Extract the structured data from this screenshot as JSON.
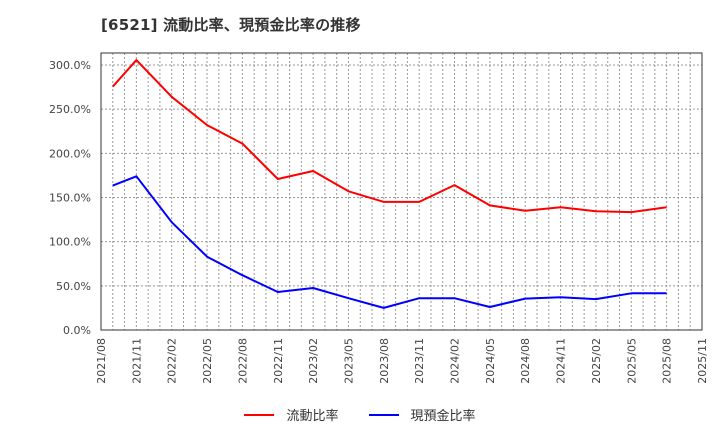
{
  "title": "[6521]  流動比率、現預金比率の推移",
  "legend": [
    {
      "label": "流動比率",
      "color": "#ff0000"
    },
    {
      "label": "現預金比率",
      "color": "#0000ff"
    }
  ],
  "chart_data": {
    "type": "line",
    "title": "[6521]  流動比率、現預金比率の推移",
    "xlabel": "",
    "ylabel": "",
    "ylim": [
      0,
      300
    ],
    "y_ticks": [
      "0.0%",
      "50.0%",
      "100.0%",
      "150.0%",
      "200.0%",
      "250.0%",
      "300.0%"
    ],
    "x_ticks": [
      "2021/08",
      "2021/11",
      "2022/02",
      "2022/05",
      "2022/08",
      "2022/11",
      "2023/02",
      "2023/05",
      "2023/08",
      "2023/11",
      "2024/02",
      "2024/05",
      "2024/08",
      "2024/11",
      "2025/02",
      "2025/05",
      "2025/08",
      "2025/11"
    ],
    "grid": true,
    "legend_position": "bottom",
    "x": [
      "2021/09",
      "2021/11",
      "2022/02",
      "2022/05",
      "2022/08",
      "2022/11",
      "2023/02",
      "2023/05",
      "2023/08",
      "2023/11",
      "2024/02",
      "2024/05",
      "2024/08",
      "2024/11",
      "2025/02",
      "2025/05",
      "2025/08"
    ],
    "series": [
      {
        "name": "流動比率",
        "color": "#ff0000",
        "values": [
          275.5,
          305.5,
          264.0,
          232.0,
          211.0,
          171.0,
          180.0,
          157.0,
          145.0,
          145.0,
          164.0,
          141.0,
          135.0,
          139.0,
          134.5,
          133.5,
          139.0
        ]
      },
      {
        "name": "現預金比率",
        "color": "#0000ff",
        "values": [
          163.5,
          174.0,
          122.0,
          83.0,
          62.0,
          43.0,
          47.5,
          36.0,
          25.0,
          36.0,
          36.0,
          26.0,
          35.5,
          37.0,
          35.0,
          41.5,
          41.5
        ]
      }
    ]
  }
}
